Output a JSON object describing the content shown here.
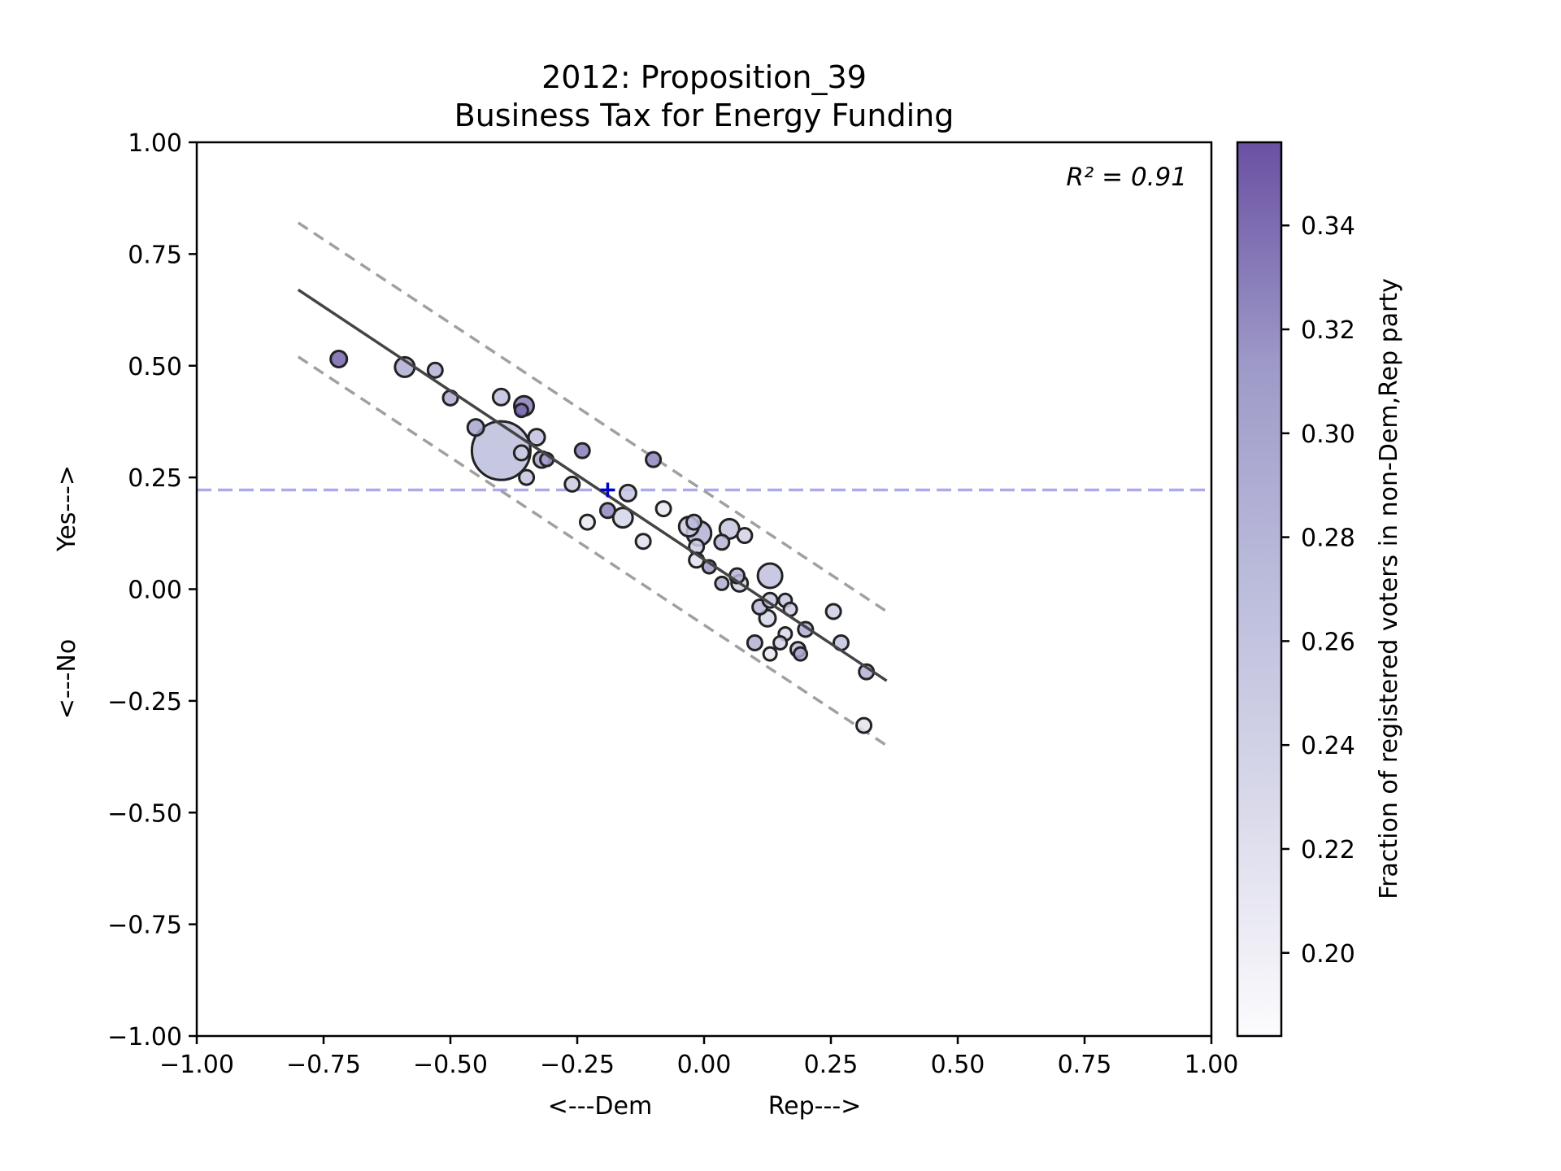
{
  "chart_data": {
    "type": "scatter",
    "title": [
      "2012: Proposition_39",
      "Business Tax for Energy Funding"
    ],
    "xlabel_left": "<---Dem",
    "xlabel_right": "Rep--->",
    "ylabel_left": "<---No",
    "ylabel_right": "Yes--->",
    "xlim": [
      -1.0,
      1.0
    ],
    "ylim": [
      -1.0,
      1.0
    ],
    "xticks": [
      "−1.00",
      "−0.75",
      "−0.50",
      "−0.25",
      "0.00",
      "0.25",
      "0.50",
      "0.75",
      "1.00"
    ],
    "yticks": [
      "−1.00",
      "−0.75",
      "−0.50",
      "−0.25",
      "0.00",
      "0.25",
      "0.50",
      "0.75",
      "1.00"
    ],
    "annotation": "R² = 0.91",
    "reference_line_y": 0.222,
    "reference_marker": {
      "x": -0.19,
      "y": 0.222
    },
    "fit_line": {
      "x": [
        -0.8,
        0.36
      ],
      "y": [
        0.67,
        -0.205
      ]
    },
    "upper_band": {
      "x": [
        -0.8,
        0.36
      ],
      "y": [
        0.82,
        -0.05
      ]
    },
    "lower_band": {
      "x": [
        -0.8,
        0.36
      ],
      "y": [
        0.52,
        -0.35
      ]
    },
    "colorbar": {
      "label": "Fraction of registered voters in non-Dem,Rep party",
      "range": [
        0.184,
        0.356
      ],
      "ticks": [
        "0.20",
        "0.22",
        "0.24",
        "0.26",
        "0.28",
        "0.30",
        "0.32",
        "0.34"
      ],
      "tick_values": [
        0.2,
        0.22,
        0.24,
        0.26,
        0.28,
        0.3,
        0.32,
        0.34
      ]
    },
    "colors": {
      "fit_line": "#444444",
      "band": "#a0a0a0",
      "reference": "#aaaaee",
      "marker": "#0000cc",
      "cmap_low": "#fcfbfd",
      "cmap_high": "#54278f"
    },
    "points": [
      {
        "x": -0.72,
        "y": 0.515,
        "s": 10,
        "c": 0.345
      },
      {
        "x": -0.59,
        "y": 0.497,
        "s": 12,
        "c": 0.29
      },
      {
        "x": -0.53,
        "y": 0.49,
        "s": 9,
        "c": 0.285
      },
      {
        "x": -0.5,
        "y": 0.428,
        "s": 9,
        "c": 0.29
      },
      {
        "x": -0.4,
        "y": 0.43,
        "s": 10,
        "c": 0.265
      },
      {
        "x": -0.45,
        "y": 0.362,
        "s": 10,
        "c": 0.3
      },
      {
        "x": -0.4,
        "y": 0.31,
        "s": 36,
        "c": 0.27
      },
      {
        "x": -0.355,
        "y": 0.41,
        "s": 12,
        "c": 0.33
      },
      {
        "x": -0.36,
        "y": 0.4,
        "s": 8,
        "c": 0.34
      },
      {
        "x": -0.33,
        "y": 0.34,
        "s": 10,
        "c": 0.265
      },
      {
        "x": -0.36,
        "y": 0.305,
        "s": 9,
        "c": 0.25
      },
      {
        "x": -0.32,
        "y": 0.29,
        "s": 10,
        "c": 0.3
      },
      {
        "x": -0.31,
        "y": 0.29,
        "s": 8,
        "c": 0.31
      },
      {
        "x": -0.35,
        "y": 0.25,
        "s": 9,
        "c": 0.26
      },
      {
        "x": -0.26,
        "y": 0.235,
        "s": 9,
        "c": 0.25
      },
      {
        "x": -0.24,
        "y": 0.31,
        "s": 9,
        "c": 0.33
      },
      {
        "x": -0.1,
        "y": 0.29,
        "s": 9,
        "c": 0.325
      },
      {
        "x": -0.15,
        "y": 0.215,
        "s": 10,
        "c": 0.26
      },
      {
        "x": -0.23,
        "y": 0.15,
        "s": 9,
        "c": 0.21
      },
      {
        "x": -0.19,
        "y": 0.176,
        "s": 9,
        "c": 0.325
      },
      {
        "x": -0.16,
        "y": 0.16,
        "s": 12,
        "c": 0.235
      },
      {
        "x": -0.12,
        "y": 0.107,
        "s": 9,
        "c": 0.22
      },
      {
        "x": -0.08,
        "y": 0.18,
        "s": 9,
        "c": 0.21
      },
      {
        "x": -0.03,
        "y": 0.14,
        "s": 12,
        "c": 0.25
      },
      {
        "x": -0.02,
        "y": 0.15,
        "s": 9,
        "c": 0.27
      },
      {
        "x": -0.01,
        "y": 0.125,
        "s": 15,
        "c": 0.285
      },
      {
        "x": -0.015,
        "y": 0.095,
        "s": 9,
        "c": 0.245
      },
      {
        "x": -0.015,
        "y": 0.065,
        "s": 9,
        "c": 0.22
      },
      {
        "x": 0.01,
        "y": 0.05,
        "s": 8,
        "c": 0.31
      },
      {
        "x": 0.035,
        "y": 0.105,
        "s": 9,
        "c": 0.28
      },
      {
        "x": 0.05,
        "y": 0.135,
        "s": 12,
        "c": 0.255
      },
      {
        "x": 0.08,
        "y": 0.12,
        "s": 9,
        "c": 0.24
      },
      {
        "x": 0.035,
        "y": 0.013,
        "s": 8,
        "c": 0.29
      },
      {
        "x": 0.065,
        "y": 0.03,
        "s": 9,
        "c": 0.28
      },
      {
        "x": 0.07,
        "y": 0.013,
        "s": 10,
        "c": 0.24
      },
      {
        "x": 0.13,
        "y": 0.03,
        "s": 15,
        "c": 0.265
      },
      {
        "x": 0.11,
        "y": -0.04,
        "s": 9,
        "c": 0.275
      },
      {
        "x": 0.13,
        "y": -0.025,
        "s": 9,
        "c": 0.255
      },
      {
        "x": 0.16,
        "y": -0.025,
        "s": 8,
        "c": 0.255
      },
      {
        "x": 0.17,
        "y": -0.045,
        "s": 8,
        "c": 0.25
      },
      {
        "x": 0.125,
        "y": -0.065,
        "s": 10,
        "c": 0.235
      },
      {
        "x": 0.2,
        "y": -0.09,
        "s": 9,
        "c": 0.29
      },
      {
        "x": 0.16,
        "y": -0.1,
        "s": 8,
        "c": 0.23
      },
      {
        "x": 0.15,
        "y": -0.12,
        "s": 8,
        "c": 0.24
      },
      {
        "x": 0.1,
        "y": -0.12,
        "s": 9,
        "c": 0.285
      },
      {
        "x": 0.185,
        "y": -0.135,
        "s": 9,
        "c": 0.265
      },
      {
        "x": 0.19,
        "y": -0.145,
        "s": 8,
        "c": 0.3
      },
      {
        "x": 0.13,
        "y": -0.145,
        "s": 8,
        "c": 0.21
      },
      {
        "x": 0.255,
        "y": -0.05,
        "s": 9,
        "c": 0.245
      },
      {
        "x": 0.27,
        "y": -0.12,
        "s": 9,
        "c": 0.26
      },
      {
        "x": 0.32,
        "y": -0.185,
        "s": 9,
        "c": 0.285
      },
      {
        "x": 0.315,
        "y": -0.305,
        "s": 9,
        "c": 0.215
      }
    ]
  }
}
